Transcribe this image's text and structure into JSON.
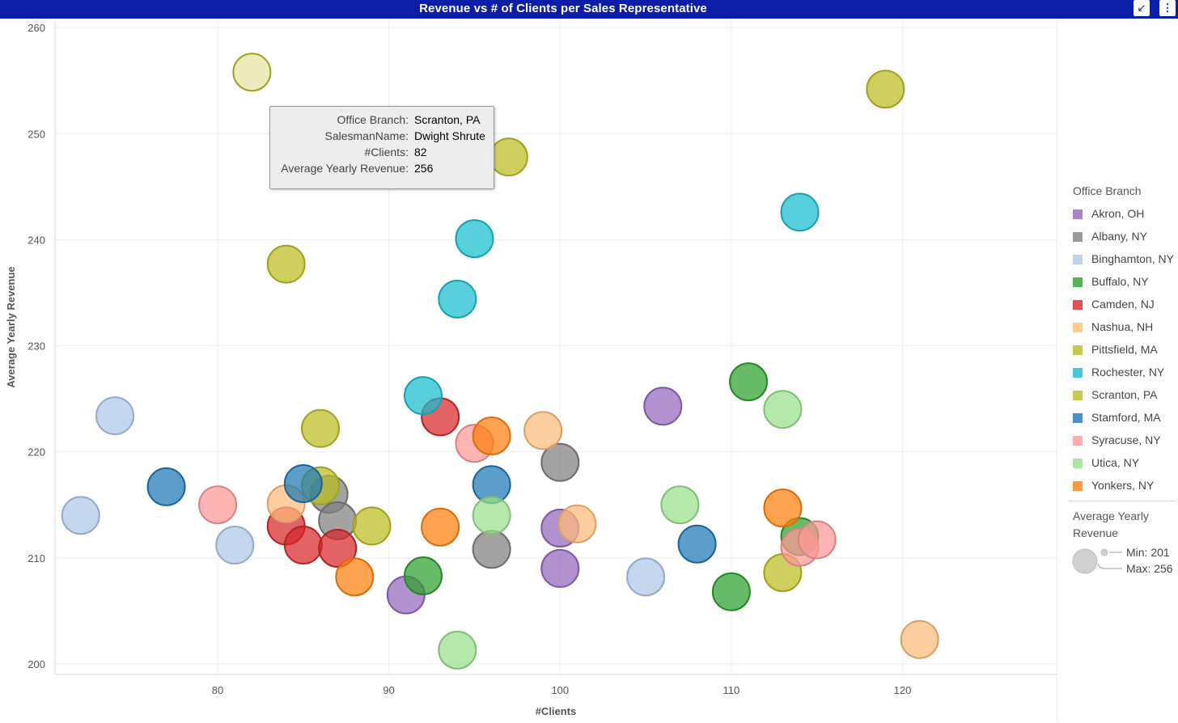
{
  "window": {
    "title": "Revenue vs # of Clients per Sales Representative"
  },
  "tooltip": {
    "rows": [
      {
        "key": "Office Branch:",
        "value": "Scranton, PA"
      },
      {
        "key": "SalesmanName:",
        "value": "Dwight Shrute"
      },
      {
        "key": "#Clients:",
        "value": "82"
      },
      {
        "key": "Average Yearly Revenue:",
        "value": "256"
      }
    ]
  },
  "chart_data": {
    "type": "scatter",
    "xlabel": "#Clients",
    "ylabel": "Average Yearly Revenue",
    "xlim": [
      70.5,
      129
    ],
    "ylim": [
      199,
      260.7
    ],
    "xticks": [
      80,
      90,
      100,
      110,
      120
    ],
    "yticks": [
      200,
      210,
      220,
      230,
      240,
      250,
      260
    ],
    "grid": true,
    "legend_position": "right",
    "legend_title": "Office Branch",
    "series": [
      {
        "name": "Akron, OH",
        "color": "#9467bd",
        "points": [
          [
            91,
            206.5
          ],
          [
            100,
            209
          ],
          [
            100,
            212.8
          ],
          [
            106,
            224.3
          ]
        ]
      },
      {
        "name": "Albany, NY",
        "color": "#7f7f7f",
        "points": [
          [
            86.5,
            216
          ],
          [
            87,
            213.5
          ],
          [
            96,
            210.8
          ],
          [
            100,
            219
          ]
        ]
      },
      {
        "name": "Binghamton, NY",
        "color": "#aec7e8",
        "points": [
          [
            72,
            214
          ],
          [
            74,
            223.4
          ],
          [
            81,
            211.2
          ],
          [
            105,
            208.2
          ]
        ]
      },
      {
        "name": "Buffalo, NY",
        "color": "#2ca02c",
        "points": [
          [
            92,
            208.3
          ],
          [
            110,
            206.8
          ],
          [
            111,
            226.6
          ],
          [
            114,
            212
          ]
        ]
      },
      {
        "name": "Camden, NJ",
        "color": "#d62728",
        "points": [
          [
            84,
            213
          ],
          [
            85,
            211.2
          ],
          [
            87,
            210.9
          ],
          [
            93,
            223.3
          ]
        ]
      },
      {
        "name": "Nashua, NH",
        "color": "#ffbb78",
        "points": [
          [
            84,
            215.1
          ],
          [
            99,
            222
          ],
          [
            101,
            213.2
          ],
          [
            121,
            202.3
          ]
        ]
      },
      {
        "name": "Pittsfield, MA",
        "color": "#bcbd22",
        "points": [
          [
            86,
            216.8
          ],
          [
            89,
            213
          ],
          [
            113,
            208.6
          ]
        ]
      },
      {
        "name": "Rochester, NY",
        "color": "#17becf",
        "points": [
          [
            92,
            225.3
          ],
          [
            94,
            234.4
          ],
          [
            95,
            240.1
          ],
          [
            114,
            242.6
          ]
        ]
      },
      {
        "name": "Scranton, PA",
        "color": "#bcbd22",
        "points": [
          [
            82,
            255.8
          ],
          [
            84,
            237.7
          ],
          [
            86,
            222.2
          ],
          [
            97,
            247.8
          ],
          [
            119,
            254.2
          ]
        ]
      },
      {
        "name": "Stamford, MA",
        "color": "#1f77b4",
        "points": [
          [
            77,
            216.7
          ],
          [
            85,
            217
          ],
          [
            96,
            216.9
          ],
          [
            108,
            211.3
          ]
        ]
      },
      {
        "name": "Syracuse, NY",
        "color": "#ff9896",
        "points": [
          [
            80,
            215
          ],
          [
            95,
            220.8
          ],
          [
            114,
            211
          ],
          [
            115,
            211.7
          ]
        ]
      },
      {
        "name": "Utica, NY",
        "color": "#98df8a",
        "points": [
          [
            94,
            201.3
          ],
          [
            96,
            214
          ],
          [
            107,
            215
          ],
          [
            113,
            224
          ]
        ]
      },
      {
        "name": "Yonkers, NY",
        "color": "#ff7f0e",
        "points": [
          [
            88,
            208.2
          ],
          [
            93,
            212.9
          ],
          [
            96,
            221.5
          ],
          [
            113,
            214.7
          ]
        ]
      }
    ],
    "size_legend": {
      "title": "Average Yearly Revenue",
      "min_label": "Min: 201",
      "max_label": "Max: 256"
    }
  }
}
